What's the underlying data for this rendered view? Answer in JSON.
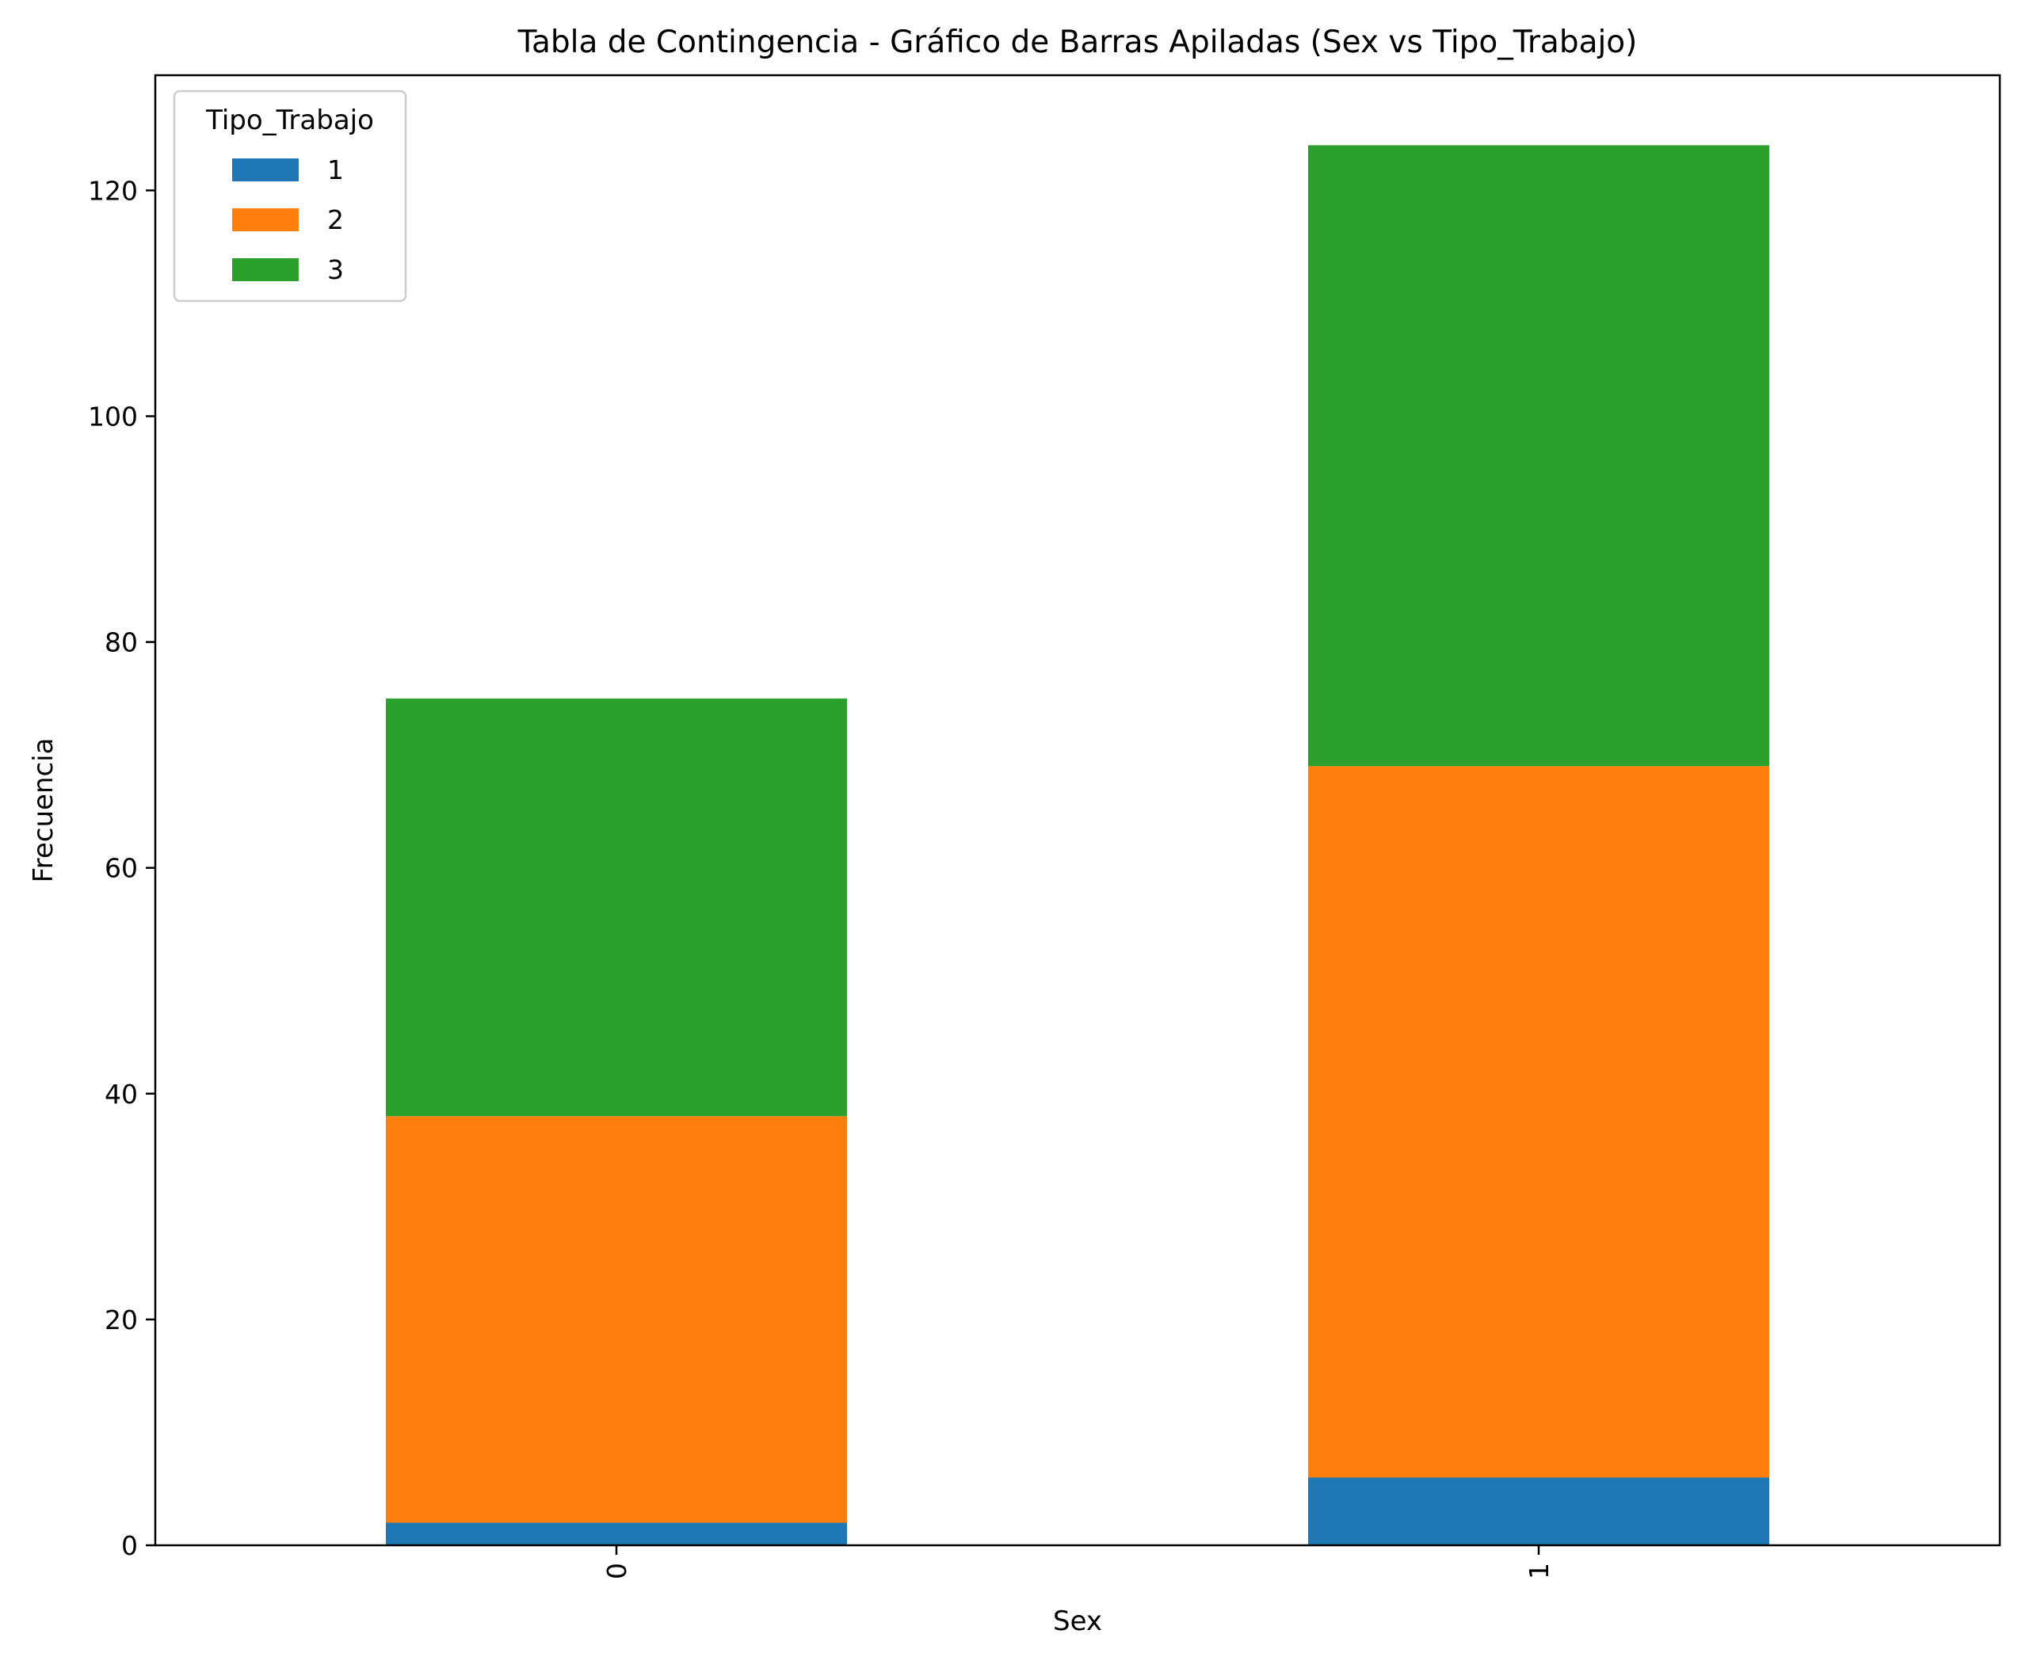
{
  "chart_data": {
    "type": "bar",
    "stacked": true,
    "title": "Tabla de Contingencia - Gráfico de Barras Apiladas (Sex vs Tipo_Trabajo)",
    "xlabel": "Sex",
    "ylabel": "Frecuencia",
    "categories": [
      "0",
      "1"
    ],
    "series": [
      {
        "name": "1",
        "color": "#1f77b4",
        "values": [
          2,
          6
        ]
      },
      {
        "name": "2",
        "color": "#ff7f0e",
        "values": [
          36,
          63
        ]
      },
      {
        "name": "3",
        "color": "#2ca02c",
        "values": [
          37,
          55
        ]
      }
    ],
    "ylim": [
      0,
      130.2
    ],
    "yticks": [
      0,
      20,
      40,
      60,
      80,
      100,
      120
    ],
    "grid": false,
    "legend": {
      "title": "Tipo_Trabajo",
      "placement": "top-left"
    }
  }
}
